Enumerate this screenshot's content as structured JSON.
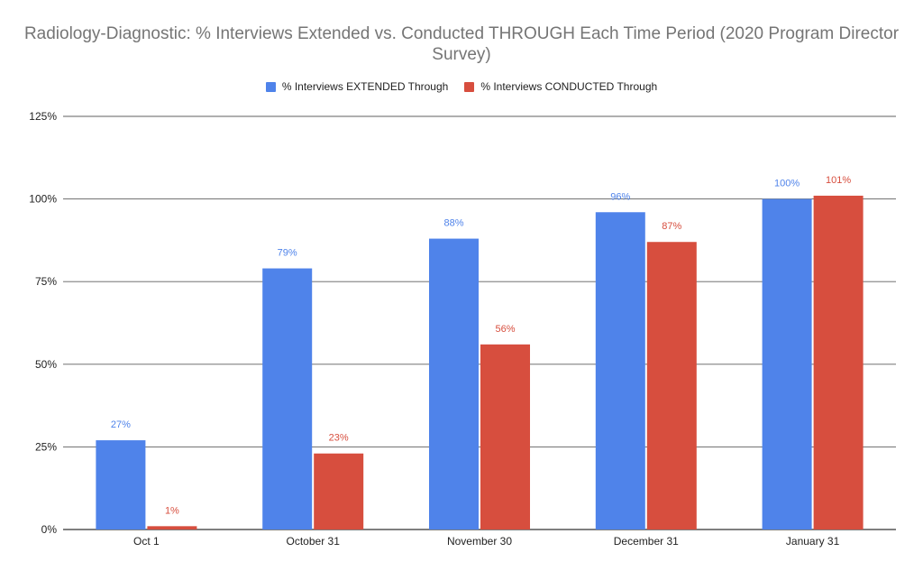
{
  "chart_data": {
    "type": "bar",
    "title": "Radiology-Diagnostic: % Interviews Extended vs. Conducted THROUGH Each Time Period (2020 Program Director Survey)",
    "xlabel": "",
    "ylabel": "",
    "categories": [
      "Oct 1",
      "October 31",
      "November 30",
      "December 31",
      "January 31"
    ],
    "series": [
      {
        "name": "% Interviews EXTENDED Through",
        "color": "#4f83ea",
        "label_color": "#4f83ea",
        "values": [
          27,
          79,
          88,
          96,
          100
        ],
        "labels": [
          "27%",
          "79%",
          "88%",
          "96%",
          "100%"
        ]
      },
      {
        "name": "% Interviews CONDUCTED Through",
        "color": "#d74e3e",
        "label_color": "#d74e3e",
        "values": [
          1,
          23,
          56,
          87,
          101
        ],
        "labels": [
          "1%",
          "23%",
          "56%",
          "87%",
          "101%"
        ]
      }
    ],
    "ylim": [
      0,
      125
    ],
    "yticks": [
      0,
      25,
      50,
      75,
      100,
      125
    ],
    "ytick_labels": [
      "0%",
      "25%",
      "50%",
      "75%",
      "100%",
      "125%"
    ],
    "grid": true,
    "legend_position": "top-center"
  }
}
